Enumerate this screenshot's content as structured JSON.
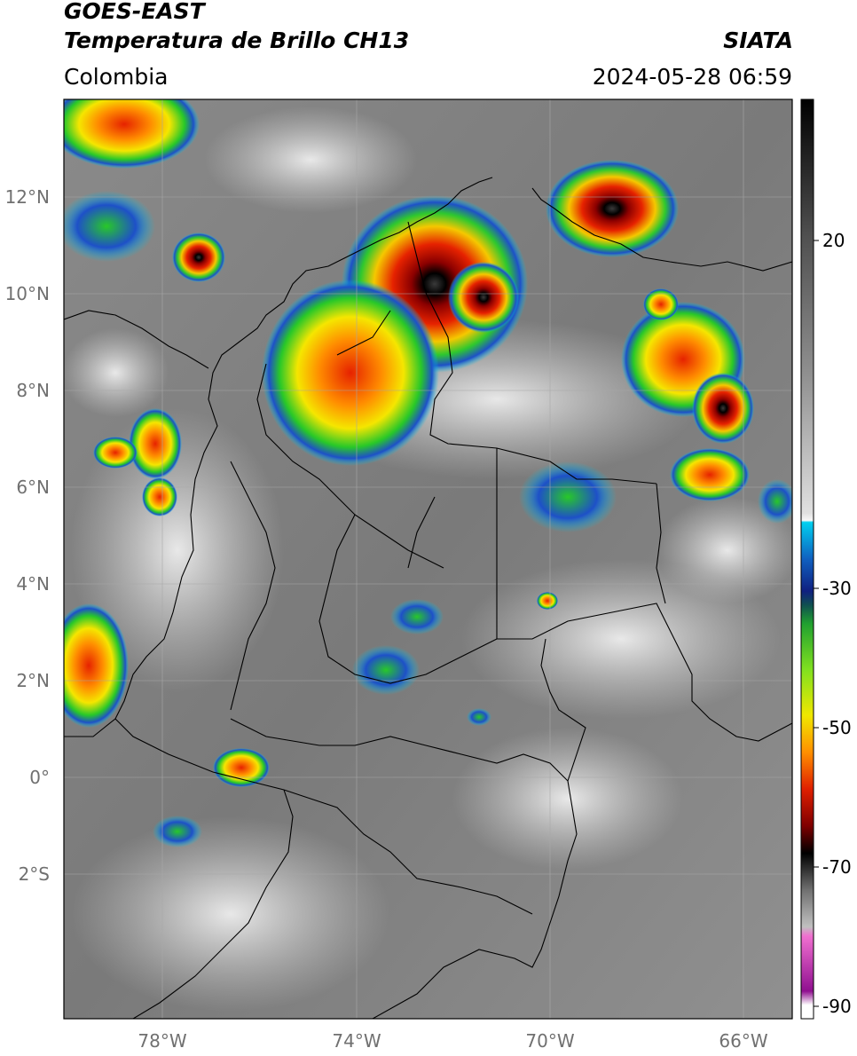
{
  "header": {
    "satellite": "GOES-EAST",
    "product": "Temperatura de Brillo CH13",
    "agency": "SIATA",
    "region": "Colombia",
    "datetime": "2024-05-28 06:59"
  },
  "map": {
    "lat_labels": [
      "12°N",
      "10°N",
      "8°N",
      "6°N",
      "4°N",
      "2°N",
      "0°",
      "2°S"
    ],
    "lon_labels": [
      "78°W",
      "74°W",
      "70°W",
      "66°W"
    ]
  },
  "colorbar": {
    "tick_labels": [
      "20",
      "-30",
      "-50",
      "-70",
      "-90"
    ],
    "colors": {
      "warm_gray": "#6e6e6e",
      "cold_white": "#f0f0f0",
      "cyan": "#00c8e6",
      "blue": "#1e3cb4",
      "green": "#28c828",
      "yellow": "#f5e600",
      "orange": "#ff8c00",
      "red": "#e61e00",
      "dark_red": "#780000",
      "black": "#000000",
      "pink": "#e650c8",
      "purple": "#8c1e8c"
    }
  }
}
